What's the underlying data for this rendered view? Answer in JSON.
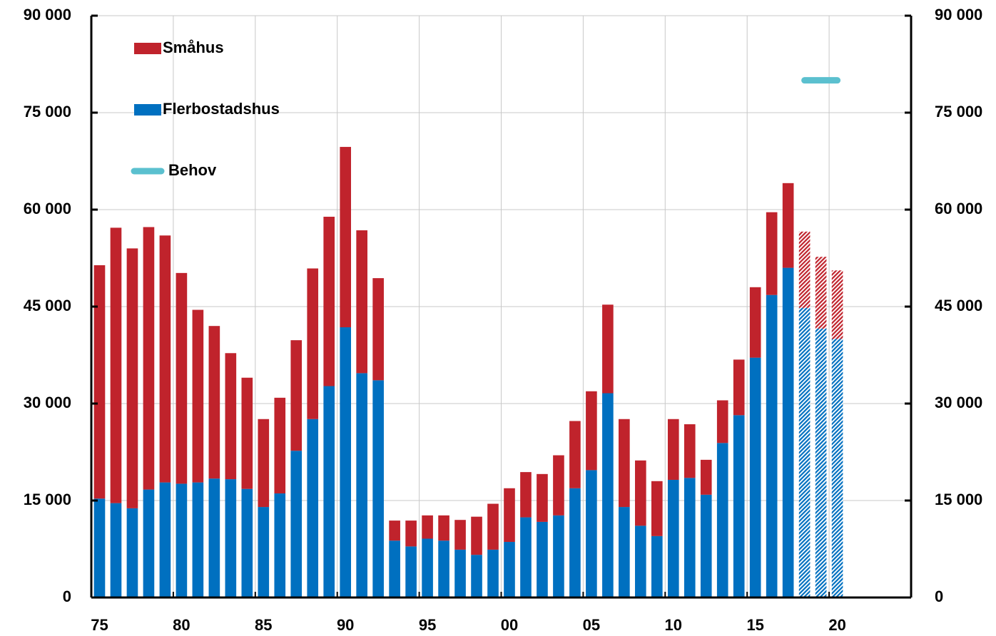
{
  "chart_data": {
    "type": "bar",
    "categories": [
      "75",
      null,
      null,
      null,
      null,
      "80",
      null,
      null,
      null,
      null,
      "85",
      null,
      null,
      null,
      null,
      "90",
      null,
      null,
      null,
      null,
      "95",
      null,
      null,
      null,
      null,
      "00",
      null,
      null,
      null,
      null,
      "05",
      null,
      null,
      null,
      null,
      "10",
      null,
      null,
      null,
      null,
      "15",
      null,
      null,
      null,
      null,
      "20",
      null,
      null,
      null,
      null
    ],
    "series": [
      {
        "name": "Flerbostadshus",
        "color": "#0070c0",
        "values": [
          15300,
          14600,
          13800,
          16700,
          17800,
          17600,
          17800,
          18400,
          18300,
          16800,
          14000,
          16100,
          22700,
          27600,
          32700,
          41800,
          34700,
          33600,
          8800,
          7900,
          9100,
          8800,
          7400,
          6600,
          7400,
          8600,
          12400,
          11700,
          12700,
          16900,
          19700,
          31600,
          14000,
          11100,
          9500,
          18200,
          18500,
          15900,
          23900,
          28200,
          37100,
          46800,
          51000,
          44800,
          41600,
          40000,
          null,
          null,
          null,
          null
        ]
      },
      {
        "name": "Småhus",
        "color": "#c0232c",
        "values": [
          36100,
          42600,
          40200,
          40600,
          38200,
          32600,
          26700,
          23600,
          19500,
          17200,
          13600,
          14800,
          17100,
          23300,
          26200,
          27900,
          22100,
          15800,
          3100,
          4000,
          3600,
          3900,
          4600,
          5900,
          7100,
          8300,
          7000,
          7400,
          9300,
          10400,
          12200,
          13700,
          13600,
          10100,
          8500,
          9400,
          8300,
          5400,
          6600,
          8600,
          10900,
          12800,
          13100,
          11800,
          11100,
          10600,
          null,
          null,
          null,
          null
        ]
      },
      {
        "name": "Behov",
        "color": "#5bc0cf",
        "type": "line",
        "values": [
          null,
          null,
          null,
          null,
          null,
          null,
          null,
          null,
          null,
          null,
          null,
          null,
          null,
          null,
          null,
          null,
          null,
          null,
          null,
          null,
          null,
          null,
          null,
          null,
          null,
          null,
          null,
          null,
          null,
          null,
          null,
          null,
          null,
          null,
          null,
          null,
          null,
          null,
          null,
          null,
          null,
          null,
          null,
          80000,
          80000,
          80000,
          null,
          null,
          null,
          null
        ]
      }
    ],
    "hatch_from_index": 43,
    "stacked": true,
    "ylim": [
      0,
      90000
    ],
    "yticks": [
      0,
      {
        "value": 15000,
        "label": "15 000"
      },
      {
        "value": 30000,
        "label": "30 000"
      },
      {
        "value": 45000,
        "label": "45 000"
      },
      {
        "value": 60000,
        "label": "60 000"
      },
      {
        "value": 75000,
        "label": "75 000"
      },
      {
        "value": 90000,
        "label": "90 000"
      }
    ],
    "grid": true
  }
}
